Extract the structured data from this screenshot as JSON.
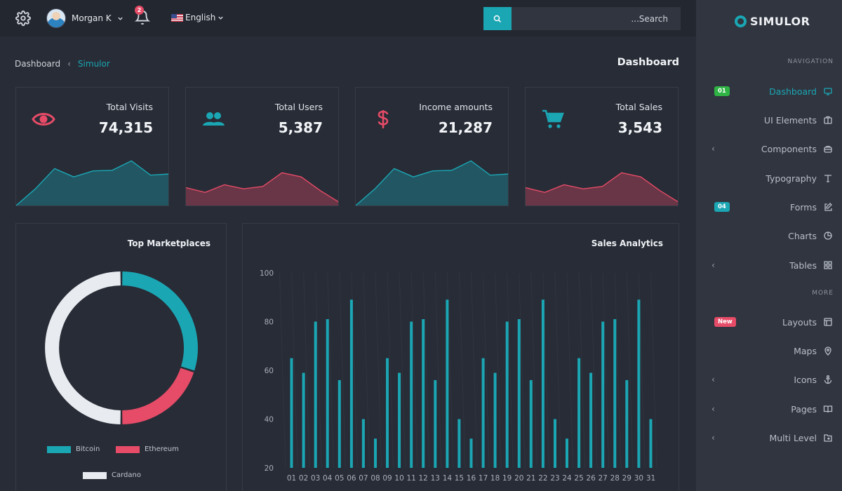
{
  "topbar": {
    "user_name": "Morgan K",
    "notification_count": "2",
    "language": "English",
    "search_placeholder": "...Search"
  },
  "breadcrumb": {
    "root": "Dashboard",
    "current": "Simulor"
  },
  "page_title": "Dashboard",
  "stats": [
    {
      "label": "Total Visits",
      "value": "74,315",
      "icon": "eye-icon",
      "color": "#e64b67",
      "spark_color": "#1ba6b4",
      "spark": [
        0,
        28,
        62,
        48,
        58,
        59,
        75,
        51,
        53
      ]
    },
    {
      "label": "Total Users",
      "value": "5,387",
      "icon": "users-icon",
      "color": "#1ba6b4",
      "spark_color": "#e64b67",
      "spark": [
        30,
        22,
        35,
        28,
        32,
        55,
        48,
        25,
        5
      ]
    },
    {
      "label": "Income amounts",
      "value": "21,287",
      "icon": "dollar-icon",
      "color": "#e64b67",
      "spark_color": "#1ba6b4",
      "spark": [
        0,
        28,
        62,
        48,
        58,
        59,
        75,
        51,
        53
      ]
    },
    {
      "label": "Total Sales",
      "value": "3,543",
      "icon": "cart-icon",
      "color": "#1ba6b4",
      "spark_color": "#e64b67",
      "spark": [
        30,
        22,
        35,
        28,
        32,
        55,
        48,
        25,
        5
      ]
    }
  ],
  "marketplaces": {
    "title": "Top Marketplaces",
    "chart_data": {
      "type": "pie",
      "title": "Top Marketplaces",
      "labels": [
        "Bitcoin",
        "Ethereum",
        "Cardano"
      ],
      "values": [
        30,
        20,
        50
      ],
      "colors": [
        "#1ba6b4",
        "#e64b67",
        "#e8ebf0"
      ],
      "legend": "bottom"
    }
  },
  "sales": {
    "title": "Sales Analytics",
    "chart_data": {
      "type": "bar",
      "title": "Sales Analytics",
      "categories": [
        "01",
        "02",
        "03",
        "04",
        "05",
        "06",
        "07",
        "08",
        "09",
        "10",
        "11",
        "12",
        "13",
        "14",
        "15",
        "16",
        "17",
        "18",
        "19",
        "20",
        "21",
        "22",
        "23",
        "24",
        "25",
        "26",
        "27",
        "28",
        "29",
        "30",
        "31"
      ],
      "values": [
        65,
        59,
        80,
        81,
        56,
        89,
        40,
        32,
        65,
        59,
        80,
        81,
        56,
        89,
        40,
        32,
        65,
        59,
        80,
        81,
        56,
        89,
        40,
        32,
        65,
        59,
        80,
        81,
        56,
        89,
        40
      ],
      "yticks": [
        "100",
        "80",
        "60",
        "40",
        "20"
      ],
      "ylim": [
        20,
        100
      ],
      "color": "#1ba6b4",
      "grid": true
    }
  },
  "sidebar": {
    "logo": "SIMULOR",
    "nav_heading": "NAVIGATION",
    "more_heading": "MORE",
    "items": [
      {
        "label": "Dashboard",
        "badge": "01",
        "badge_color": "#2fb344",
        "icon": "monitor-icon",
        "active": true
      },
      {
        "label": "UI Elements",
        "icon": "briefcase-icon"
      },
      {
        "label": "Components",
        "icon": "layers-icon",
        "chevron": true
      },
      {
        "label": "Typography",
        "icon": "type-icon"
      },
      {
        "label": "Forms",
        "badge": "04",
        "badge_color": "#1ba6b4",
        "icon": "edit-icon"
      },
      {
        "label": "Charts",
        "icon": "pie-chart-icon"
      },
      {
        "label": "Tables",
        "icon": "grid-icon",
        "chevron": true
      },
      {
        "label": "Layouts",
        "badge": "New",
        "badge_color": "#e64b67",
        "icon": "layout-icon"
      },
      {
        "label": "Maps",
        "icon": "map-pin-icon"
      },
      {
        "label": "Icons",
        "icon": "anchor-icon",
        "chevron": true
      },
      {
        "label": "Pages",
        "icon": "book-icon",
        "chevron": true
      },
      {
        "label": "Multi Level",
        "icon": "folder-icon",
        "chevron": true
      }
    ]
  }
}
